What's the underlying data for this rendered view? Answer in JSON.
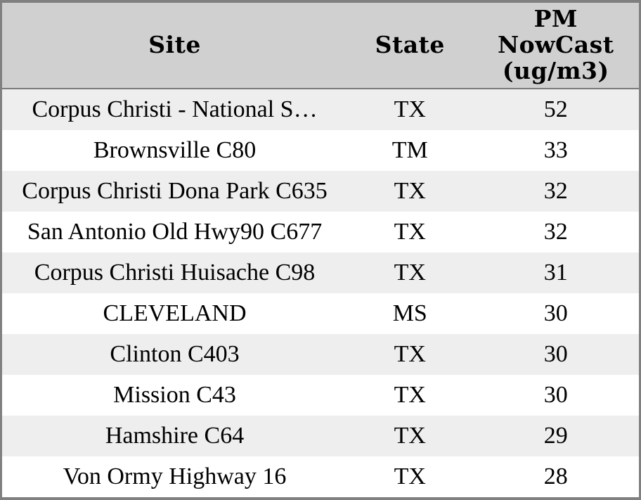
{
  "header": {
    "site_label": "Site",
    "state_label": "State",
    "pm_label": "PM\nNowCast\n(ug/m3)"
  },
  "chart_data": {
    "type": "table",
    "columns": [
      "Site",
      "State",
      "PM NowCast (ug/m3)"
    ],
    "rows": [
      {
        "site": "Corpus Christi - National S…",
        "state": "TX",
        "pm_nowcast": 52
      },
      {
        "site": "Brownsville C80",
        "state": "TM",
        "pm_nowcast": 33
      },
      {
        "site": "Corpus Christi Dona Park C635",
        "state": "TX",
        "pm_nowcast": 32
      },
      {
        "site": "San Antonio Old Hwy90 C677",
        "state": "TX",
        "pm_nowcast": 32
      },
      {
        "site": "Corpus Christi Huisache C98",
        "state": "TX",
        "pm_nowcast": 31
      },
      {
        "site": "CLEVELAND",
        "state": "MS",
        "pm_nowcast": 30
      },
      {
        "site": "Clinton C403",
        "state": "TX",
        "pm_nowcast": 30
      },
      {
        "site": "Mission C43",
        "state": "TX",
        "pm_nowcast": 30
      },
      {
        "site": "Hamshire C64",
        "state": "TX",
        "pm_nowcast": 29
      },
      {
        "site": "Von Ormy Highway 16",
        "state": "TX",
        "pm_nowcast": 28
      }
    ]
  },
  "colors": {
    "outer_border": "#808080",
    "header_separator": "#7a7a7a",
    "header_bg": "#d0d0d0",
    "row_stripe": "#eeeeee",
    "row_bg": "#ffffff",
    "text": "#000000"
  }
}
